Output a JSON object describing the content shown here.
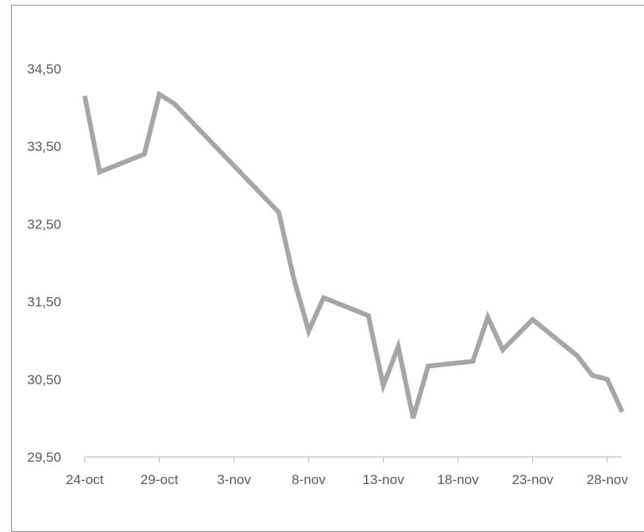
{
  "chart_data": {
    "type": "line",
    "title": "",
    "xlabel": "",
    "ylabel": "",
    "ylim": [
      29.5,
      34.5
    ],
    "y_ticks": [
      "29,50",
      "30,50",
      "31,50",
      "32,50",
      "33,50",
      "34,50"
    ],
    "x_range": [
      "2023-10-24",
      "2023-11-28"
    ],
    "x_ticks": [
      "24-oct",
      "29-oct",
      "3-nov",
      "8-nov",
      "13-nov",
      "18-nov",
      "23-nov",
      "28-nov"
    ],
    "grid": false,
    "legend": "none",
    "series": [
      {
        "color": "#a6a6a6",
        "points": [
          {
            "x": "2023-10-24",
            "y": 34.15
          },
          {
            "x": "2023-10-25",
            "y": 33.17
          },
          {
            "x": "2023-10-28",
            "y": 33.4
          },
          {
            "x": "2023-10-29",
            "y": 34.17
          },
          {
            "x": "2023-10-30",
            "y": 34.05
          },
          {
            "x": "2023-11-06",
            "y": 32.65
          },
          {
            "x": "2023-11-07",
            "y": 31.8
          },
          {
            "x": "2023-11-08",
            "y": 31.12
          },
          {
            "x": "2023-11-09",
            "y": 31.55
          },
          {
            "x": "2023-11-12",
            "y": 31.32
          },
          {
            "x": "2023-11-13",
            "y": 30.42
          },
          {
            "x": "2023-11-14",
            "y": 30.92
          },
          {
            "x": "2023-11-15",
            "y": 30.0
          },
          {
            "x": "2023-11-16",
            "y": 30.67
          },
          {
            "x": "2023-11-19",
            "y": 30.73
          },
          {
            "x": "2023-11-20",
            "y": 31.3
          },
          {
            "x": "2023-11-21",
            "y": 30.88
          },
          {
            "x": "2023-11-23",
            "y": 31.27
          },
          {
            "x": "2023-11-26",
            "y": 30.8
          },
          {
            "x": "2023-11-27",
            "y": 30.55
          },
          {
            "x": "2023-11-28",
            "y": 30.5
          },
          {
            "x": "2023-11-29",
            "y": 30.08
          }
        ]
      }
    ]
  }
}
